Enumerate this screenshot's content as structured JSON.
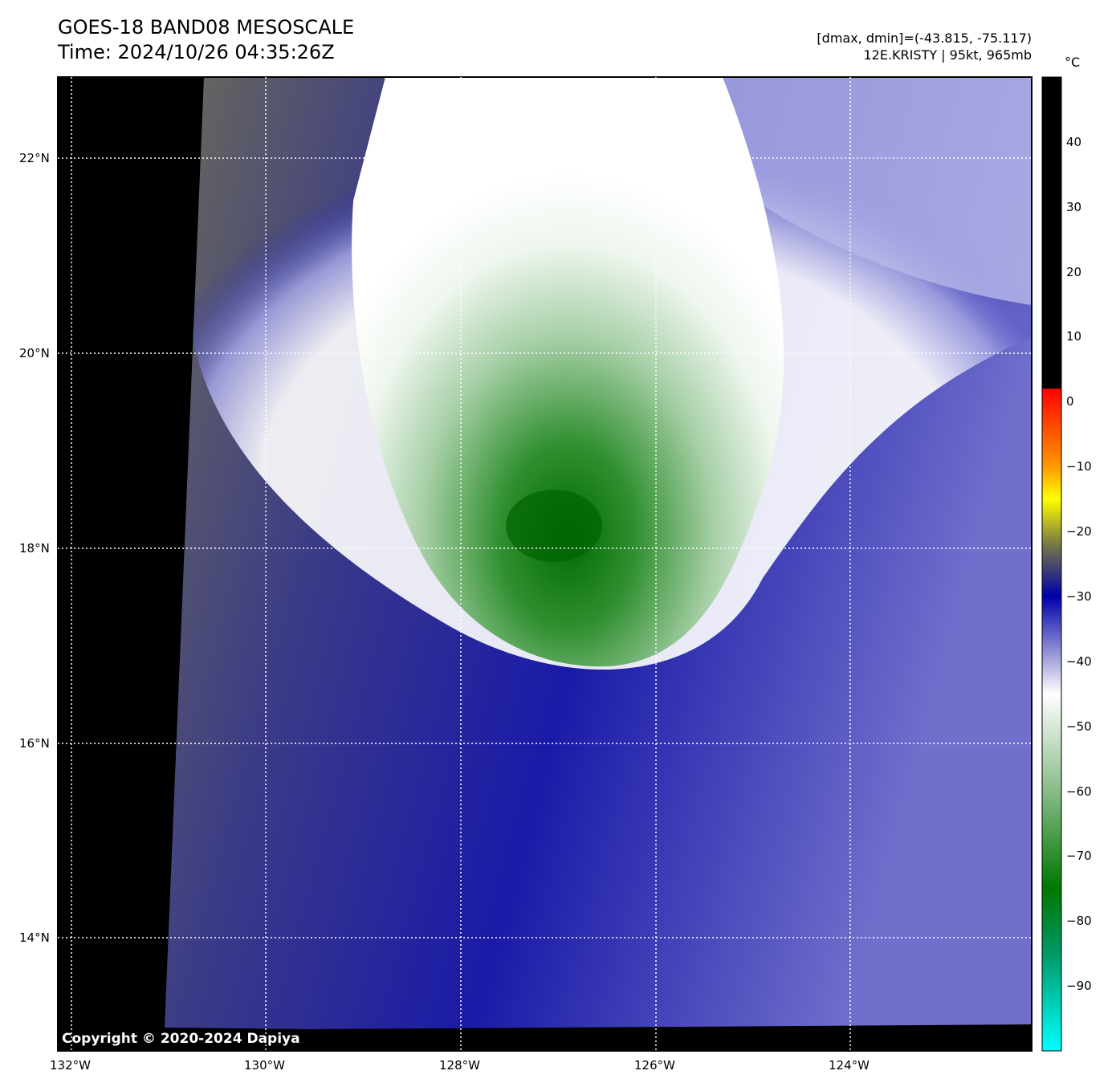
{
  "header": {
    "title": "GOES-18 BAND08 MESOSCALE",
    "time": "Time: 2024/10/26 04:35:26Z",
    "range": "[dmax, dmin]=(-43.815, -75.117)",
    "storm": "12E.KRISTY | 95kt, 965mb"
  },
  "map": {
    "lon_ticks": [
      "132°W",
      "130°W",
      "128°W",
      "126°W",
      "124°W"
    ],
    "lat_ticks": [
      "22°N",
      "20°N",
      "18°N",
      "16°N",
      "14°N"
    ],
    "copyright": "Copyright © 2020-2024 Dapiya"
  },
  "colorbar": {
    "unit": "°C",
    "ticks": [
      "40",
      "30",
      "20",
      "10",
      "0",
      "−10",
      "−20",
      "−30",
      "−40",
      "−50",
      "−60",
      "−70",
      "−80",
      "−90"
    ],
    "range": [
      -100,
      50
    ],
    "stops": [
      {
        "value": 50,
        "color": "#000000"
      },
      {
        "value": 2,
        "color": "#000000"
      },
      {
        "value": 2,
        "color": "#ff0000"
      },
      {
        "value": -10,
        "color": "#ff9900"
      },
      {
        "value": -15,
        "color": "#ffff00"
      },
      {
        "value": -22,
        "color": "#777744"
      },
      {
        "value": -30,
        "color": "#0000aa"
      },
      {
        "value": -40,
        "color": "#aaaadd"
      },
      {
        "value": -45,
        "color": "#ffffff"
      },
      {
        "value": -60,
        "color": "#88bb88"
      },
      {
        "value": -75,
        "color": "#007700"
      },
      {
        "value": -85,
        "color": "#009966"
      },
      {
        "value": -100,
        "color": "#00ffff"
      }
    ]
  }
}
